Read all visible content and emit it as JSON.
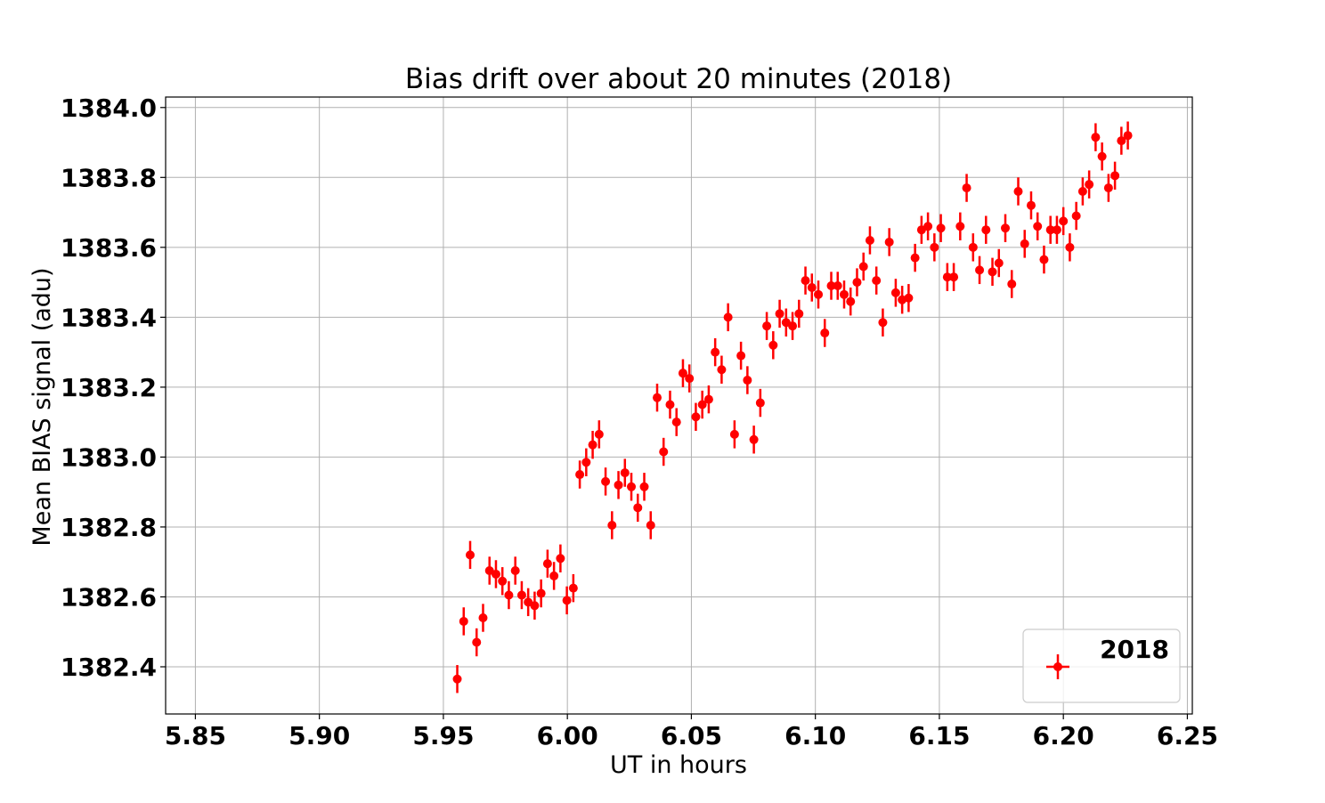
{
  "chart_data": {
    "type": "scatter",
    "title": "Bias drift over about 20 minutes (2018)",
    "xlabel": "UT in hours",
    "ylabel": "Mean BIAS signal (adu)",
    "xlim": [
      5.838,
      6.252
    ],
    "ylim": [
      1382.265,
      1384.03
    ],
    "xticks": [
      5.85,
      5.9,
      5.95,
      6.0,
      6.05,
      6.1,
      6.15,
      6.2,
      6.25
    ],
    "xtick_labels": [
      "5.85",
      "5.90",
      "5.95",
      "6.00",
      "6.05",
      "6.10",
      "6.15",
      "6.20",
      "6.25"
    ],
    "yticks": [
      1382.4,
      1382.6,
      1382.8,
      1383.0,
      1383.2,
      1383.4,
      1383.6,
      1383.8,
      1384.0
    ],
    "ytick_labels": [
      "1382.4",
      "1382.6",
      "1382.8",
      "1383.0",
      "1383.2",
      "1383.4",
      "1383.6",
      "1383.8",
      "1384.0"
    ],
    "grid": true,
    "legend_position": "lower-right",
    "yerr": 0.04,
    "series": [
      {
        "name": "2018",
        "color": "#ff0000",
        "points": [
          [
            5.9556,
            1382.365
          ],
          [
            5.9582,
            1382.53
          ],
          [
            5.9608,
            1382.72
          ],
          [
            5.9634,
            1382.47
          ],
          [
            5.966,
            1382.54
          ],
          [
            5.9686,
            1382.675
          ],
          [
            5.9712,
            1382.665
          ],
          [
            5.9738,
            1382.645
          ],
          [
            5.9764,
            1382.605
          ],
          [
            5.979,
            1382.675
          ],
          [
            5.9816,
            1382.605
          ],
          [
            5.9842,
            1382.585
          ],
          [
            5.9868,
            1382.575
          ],
          [
            5.9894,
            1382.61
          ],
          [
            5.992,
            1382.695
          ],
          [
            5.9946,
            1382.66
          ],
          [
            5.9972,
            1382.71
          ],
          [
            5.9998,
            1382.59
          ],
          [
            6.0024,
            1382.625
          ],
          [
            6.005,
            1382.95
          ],
          [
            6.0076,
            1382.985
          ],
          [
            6.0102,
            1383.035
          ],
          [
            6.0128,
            1383.065
          ],
          [
            6.0154,
            1382.93
          ],
          [
            6.018,
            1382.805
          ],
          [
            6.0206,
            1382.92
          ],
          [
            6.0232,
            1382.955
          ],
          [
            6.0258,
            1382.915
          ],
          [
            6.0284,
            1382.855
          ],
          [
            6.031,
            1382.915
          ],
          [
            6.0336,
            1382.805
          ],
          [
            6.0362,
            1383.17
          ],
          [
            6.0388,
            1383.015
          ],
          [
            6.0414,
            1383.15
          ],
          [
            6.044,
            1383.1
          ],
          [
            6.0466,
            1383.24
          ],
          [
            6.0492,
            1383.225
          ],
          [
            6.0518,
            1383.115
          ],
          [
            6.0544,
            1383.15
          ],
          [
            6.057,
            1383.165
          ],
          [
            6.0596,
            1383.3
          ],
          [
            6.0622,
            1383.25
          ],
          [
            6.0648,
            1383.4
          ],
          [
            6.0674,
            1383.065
          ],
          [
            6.07,
            1383.29
          ],
          [
            6.0726,
            1383.22
          ],
          [
            6.0752,
            1383.05
          ],
          [
            6.0778,
            1383.155
          ],
          [
            6.0804,
            1383.375
          ],
          [
            6.083,
            1383.32
          ],
          [
            6.0856,
            1383.41
          ],
          [
            6.0882,
            1383.385
          ],
          [
            6.0908,
            1383.375
          ],
          [
            6.0934,
            1383.41
          ],
          [
            6.096,
            1383.505
          ],
          [
            6.0986,
            1383.485
          ],
          [
            6.1012,
            1383.465
          ],
          [
            6.1038,
            1383.355
          ],
          [
            6.1064,
            1383.49
          ],
          [
            6.109,
            1383.49
          ],
          [
            6.1116,
            1383.465
          ],
          [
            6.1142,
            1383.445
          ],
          [
            6.1168,
            1383.5
          ],
          [
            6.1194,
            1383.545
          ],
          [
            6.122,
            1383.62
          ],
          [
            6.1246,
            1383.505
          ],
          [
            6.1272,
            1383.385
          ],
          [
            6.1298,
            1383.615
          ],
          [
            6.1324,
            1383.47
          ],
          [
            6.135,
            1383.45
          ],
          [
            6.1376,
            1383.455
          ],
          [
            6.1402,
            1383.57
          ],
          [
            6.1428,
            1383.65
          ],
          [
            6.1454,
            1383.66
          ],
          [
            6.148,
            1383.6
          ],
          [
            6.1506,
            1383.655
          ],
          [
            6.1532,
            1383.515
          ],
          [
            6.1558,
            1383.515
          ],
          [
            6.1584,
            1383.66
          ],
          [
            6.161,
            1383.77
          ],
          [
            6.1636,
            1383.6
          ],
          [
            6.1662,
            1383.535
          ],
          [
            6.1688,
            1383.65
          ],
          [
            6.1714,
            1383.53
          ],
          [
            6.174,
            1383.555
          ],
          [
            6.1766,
            1383.655
          ],
          [
            6.1792,
            1383.495
          ],
          [
            6.1818,
            1383.76
          ],
          [
            6.1844,
            1383.61
          ],
          [
            6.187,
            1383.72
          ],
          [
            6.1896,
            1383.66
          ],
          [
            6.1922,
            1383.565
          ],
          [
            6.1948,
            1383.65
          ],
          [
            6.1974,
            1383.65
          ],
          [
            6.2,
            1383.675
          ],
          [
            6.2026,
            1383.6
          ],
          [
            6.2052,
            1383.69
          ],
          [
            6.2078,
            1383.76
          ],
          [
            6.2104,
            1383.78
          ],
          [
            6.213,
            1383.915
          ],
          [
            6.2156,
            1383.86
          ],
          [
            6.2182,
            1383.77
          ],
          [
            6.2208,
            1383.805
          ],
          [
            6.2234,
            1383.905
          ],
          [
            6.226,
            1383.92
          ]
        ]
      }
    ]
  }
}
